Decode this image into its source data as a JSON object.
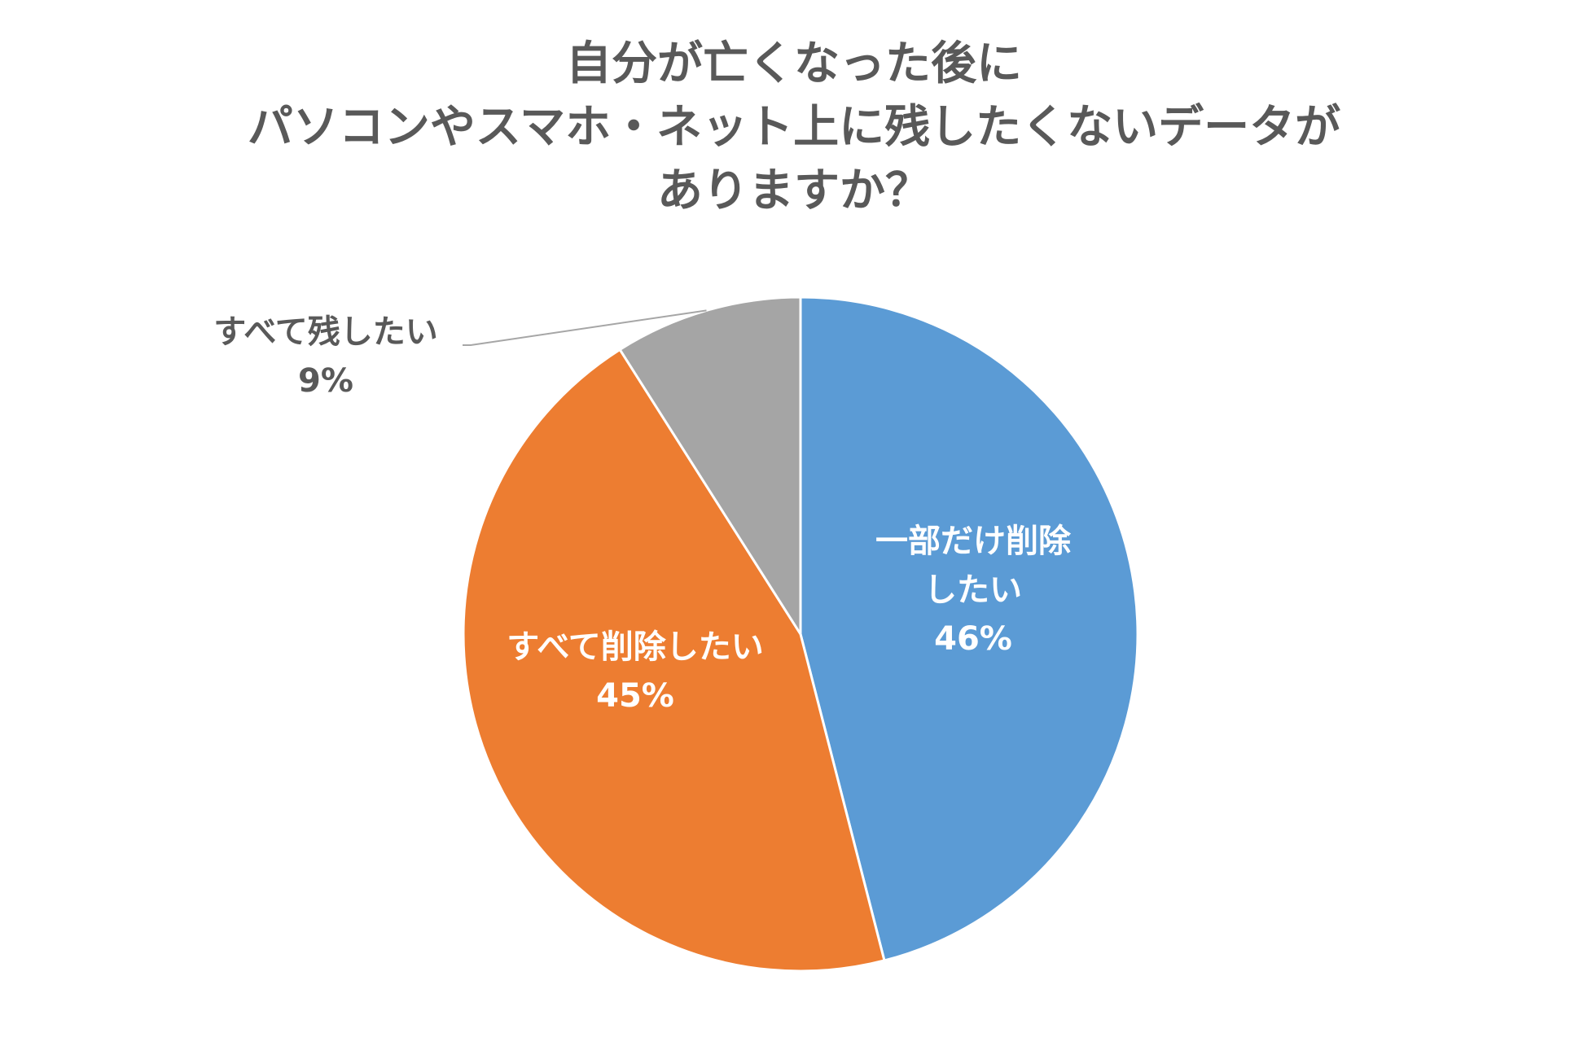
{
  "chart_data": {
    "type": "pie",
    "title_lines": [
      "自分が亡くなった後に",
      "パソコンやスマホ・ネット上に残したくないデータが",
      "ありますか？"
    ],
    "slices": [
      {
        "label": "一部だけ削除したい",
        "label_lines": [
          "一部だけ削除",
          "したい"
        ],
        "value": 46,
        "value_label": "46%",
        "color": "#5B9BD5",
        "text_color": "#FFFFFF"
      },
      {
        "label": "すべて削除したい",
        "label_lines": [
          "すべて削除したい"
        ],
        "value": 45,
        "value_label": "45%",
        "color": "#ED7D31",
        "text_color": "#FFFFFF"
      },
      {
        "label": "すべて残したい",
        "label_lines": [
          "すべて残したい"
        ],
        "value": 9,
        "value_label": "9%",
        "color": "#A5A5A5",
        "text_color": "#595959"
      }
    ],
    "start": "12 o'clock",
    "direction": "clockwise",
    "legend": "none",
    "slice_border_color": "#FFFFFF",
    "leader_line_color": "#A6A6A6"
  }
}
